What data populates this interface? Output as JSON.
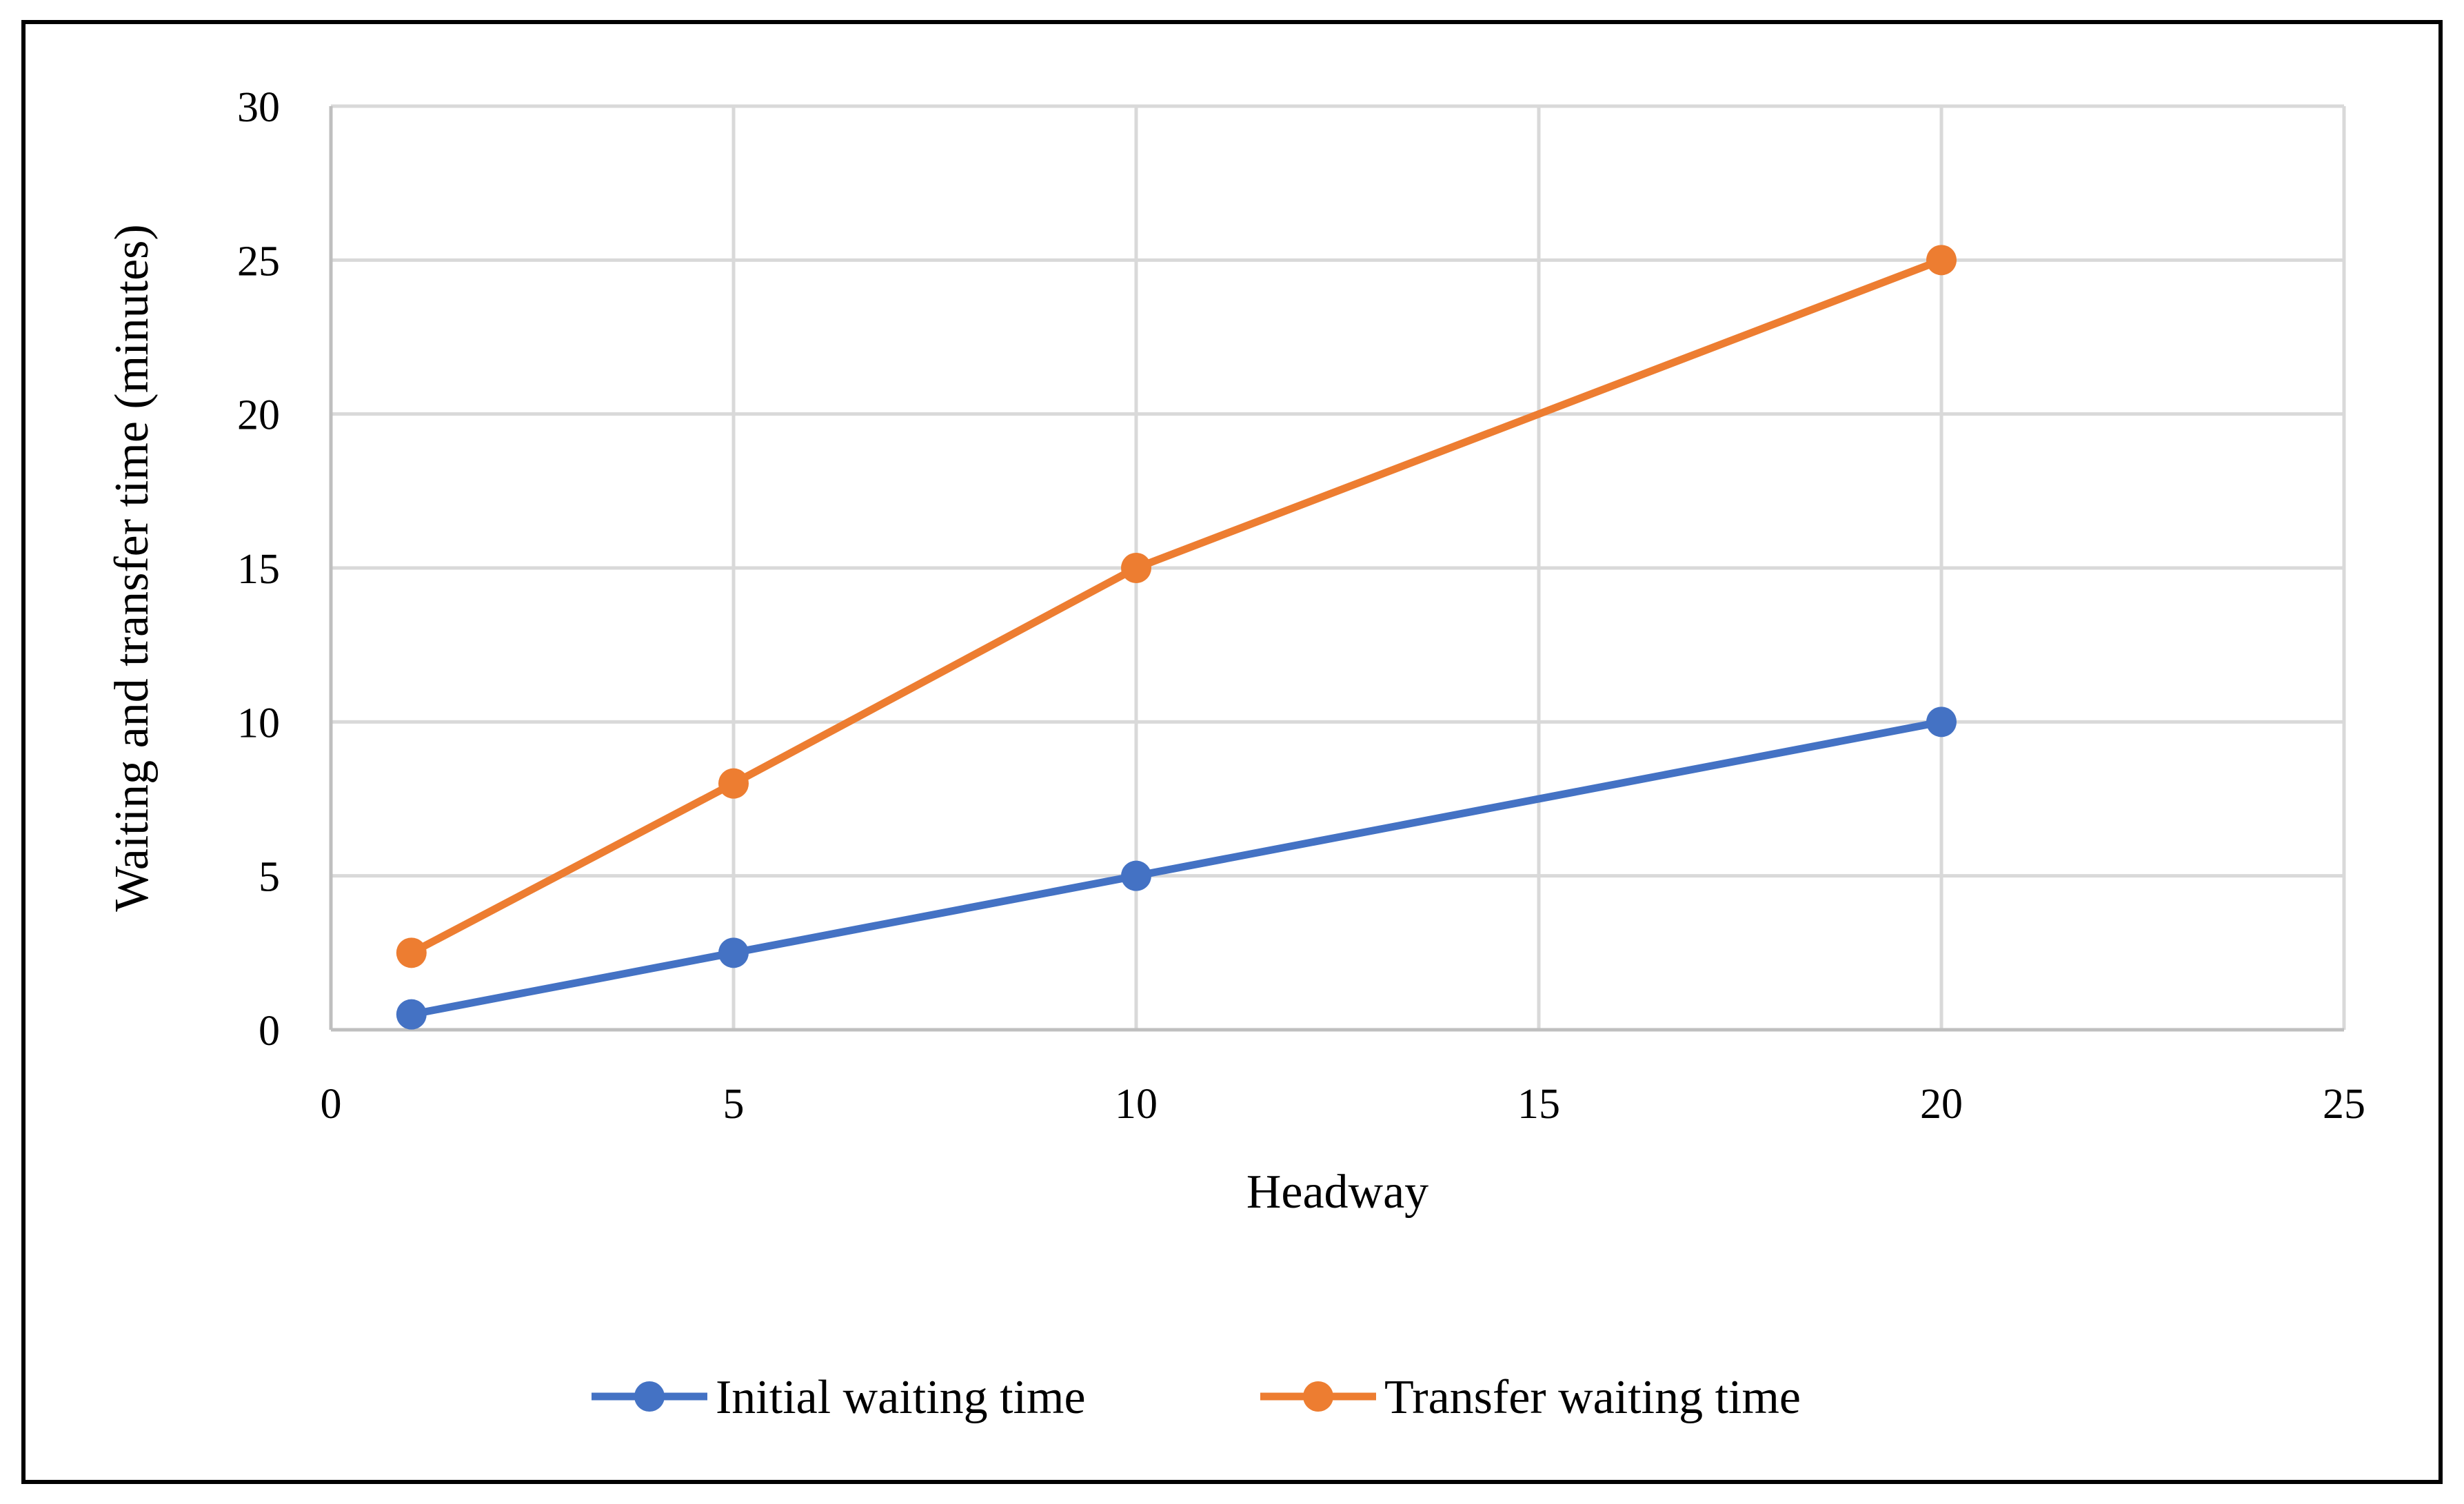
{
  "chart_data": {
    "type": "line",
    "title": "",
    "xlabel": "Headway",
    "ylabel": "Waiting and transfer time (minutes)",
    "xlim": [
      0,
      25
    ],
    "ylim": [
      0,
      30
    ],
    "xticks": [
      "0",
      "5",
      "10",
      "15",
      "20",
      "25"
    ],
    "yticks": [
      "0",
      "5",
      "10",
      "15",
      "20",
      "25",
      "30"
    ],
    "grid": true,
    "legend_position": "bottom",
    "series": [
      {
        "name": "Initial waiting time",
        "color": "#4472C4",
        "x": [
          1,
          5,
          10,
          20
        ],
        "y": [
          0.5,
          2.5,
          5,
          10
        ]
      },
      {
        "name": "Transfer waiting time",
        "color": "#ED7D31",
        "x": [
          1,
          5,
          10,
          20
        ],
        "y": [
          2.5,
          8,
          15,
          25
        ]
      }
    ]
  }
}
